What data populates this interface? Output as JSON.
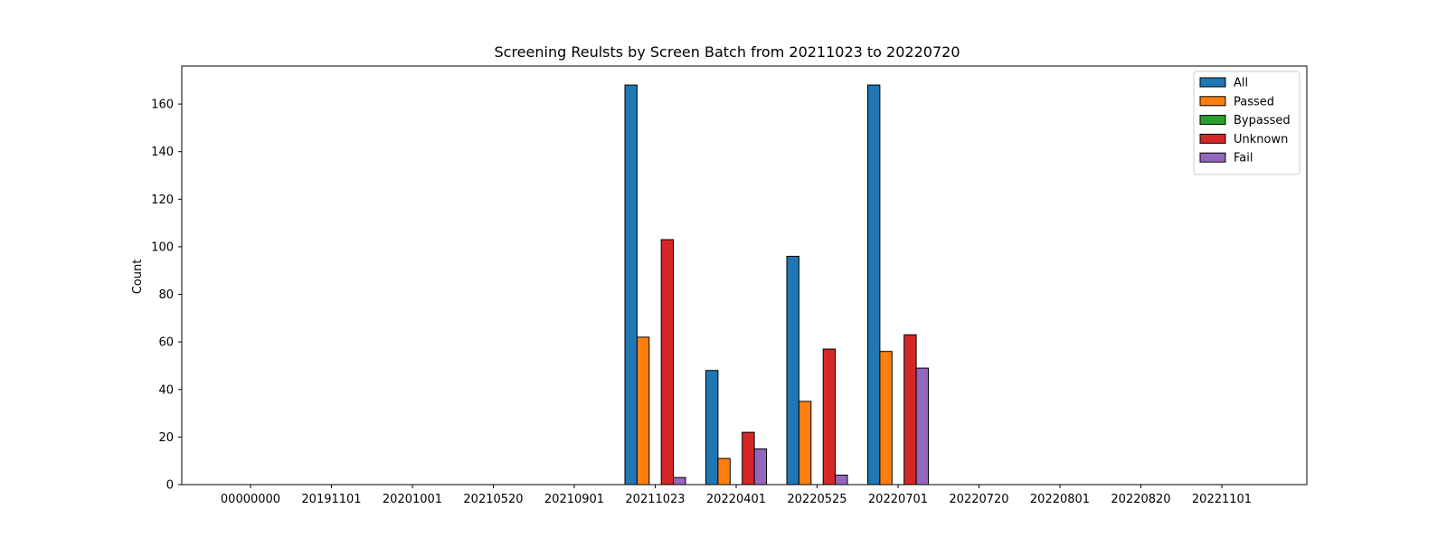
{
  "chart_data": {
    "type": "bar",
    "title": "Screening Reulsts by Screen Batch from 20211023 to 20220720",
    "xlabel": "",
    "ylabel": "Count",
    "ylim": [
      0,
      176
    ],
    "yticks": [
      0,
      20,
      40,
      60,
      80,
      100,
      120,
      140,
      160
    ],
    "grid": false,
    "legend_position": "top-right",
    "categories": [
      "00000000",
      "20191101",
      "20201001",
      "20210520",
      "20210901",
      "20211023",
      "20220401",
      "20220525",
      "20220701",
      "20220720",
      "20220801",
      "20220820",
      "20221101"
    ],
    "series": [
      {
        "name": "All",
        "color": "#1f77b4",
        "values": [
          0,
          0,
          0,
          0,
          0,
          168,
          48,
          96,
          168,
          0,
          0,
          0,
          0
        ]
      },
      {
        "name": "Passed",
        "color": "#ff7f0e",
        "values": [
          0,
          0,
          0,
          0,
          0,
          62,
          11,
          35,
          56,
          0,
          0,
          0,
          0
        ]
      },
      {
        "name": "Bypassed",
        "color": "#2ca02c",
        "values": [
          0,
          0,
          0,
          0,
          0,
          0,
          0,
          0,
          0,
          0,
          0,
          0,
          0
        ]
      },
      {
        "name": "Unknown",
        "color": "#d62728",
        "values": [
          0,
          0,
          0,
          0,
          0,
          103,
          22,
          57,
          63,
          0,
          0,
          0,
          0
        ]
      },
      {
        "name": "Fail",
        "color": "#9467bd",
        "values": [
          0,
          0,
          0,
          0,
          0,
          3,
          15,
          4,
          49,
          0,
          0,
          0,
          0
        ]
      }
    ]
  }
}
